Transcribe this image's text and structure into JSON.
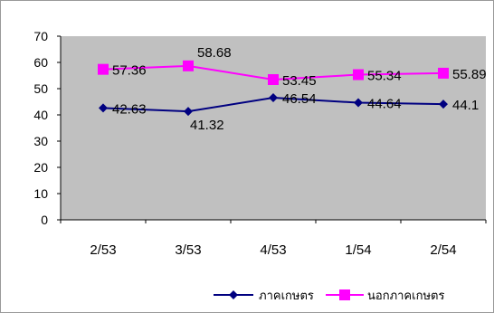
{
  "chart_data": {
    "type": "line",
    "categories": [
      "2/53",
      "3/53",
      "4/53",
      "1/54",
      "2/54"
    ],
    "ylim": [
      0,
      70
    ],
    "yticks": [
      0,
      10,
      20,
      30,
      40,
      50,
      60,
      70
    ],
    "grid": false,
    "legend_position": "bottom-right",
    "plot_background": "#c0c0c0",
    "series": [
      {
        "name": "ภาคเกษตร",
        "color": "#000080",
        "marker": "diamond",
        "values": [
          42.63,
          41.32,
          46.54,
          44.64,
          44.1
        ],
        "labels": [
          "42.63",
          "41.32",
          "46.54",
          "44.64",
          "44.1"
        ]
      },
      {
        "name": "นอกภาคเกษตร",
        "color": "#ff00ff",
        "marker": "square",
        "values": [
          57.36,
          58.68,
          53.45,
          55.34,
          55.89
        ],
        "labels": [
          "57.36",
          "58.68",
          "53.45",
          "55.34",
          "55.89"
        ]
      }
    ]
  }
}
